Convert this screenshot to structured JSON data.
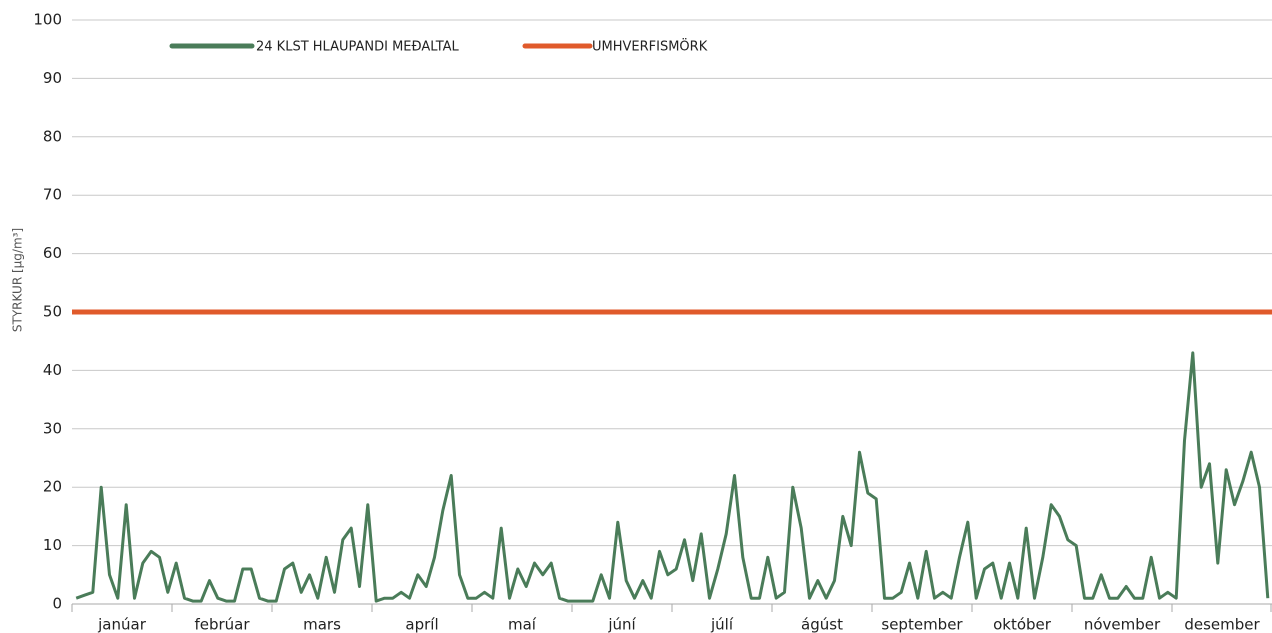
{
  "chart_data": {
    "type": "line",
    "y_label": "STYRKUR [µg/m³]",
    "x_labels": [
      "janúar",
      "febrúar",
      "mars",
      "apríl",
      "maí",
      "júní",
      "júlí",
      "ágúst",
      "september",
      "október",
      "nóvember",
      "desember"
    ],
    "series": [
      {
        "name": "24 KLST HLAUPANDI MEÐALTAL",
        "color": "#4a7c59",
        "values": [
          1,
          1.5,
          2,
          20,
          5,
          1,
          17,
          1,
          7,
          9,
          8,
          2,
          7,
          1,
          0.5,
          0.5,
          4,
          1,
          0.5,
          0.5,
          6,
          6,
          1,
          0.5,
          0.5,
          6,
          7,
          2,
          5,
          1,
          8,
          2,
          11,
          13,
          3,
          17,
          0.5,
          1,
          1,
          2,
          1,
          5,
          3,
          8,
          16,
          22,
          5,
          1,
          1,
          2,
          1,
          13,
          1,
          6,
          3,
          7,
          5,
          7,
          1,
          0.5,
          0.5,
          0.5,
          0.5,
          5,
          1,
          14,
          4,
          1,
          4,
          1,
          9,
          5,
          6,
          11,
          4,
          12,
          1,
          6,
          12,
          22,
          8,
          1,
          1,
          8,
          1,
          2,
          20,
          13,
          1,
          4,
          1,
          4,
          15,
          10,
          26,
          19,
          18,
          1,
          1,
          2,
          7,
          1,
          9,
          1,
          2,
          1,
          8,
          14,
          1,
          6,
          7,
          1,
          7,
          1,
          13,
          1,
          8,
          17,
          15,
          11,
          10,
          1,
          1,
          5,
          1,
          1,
          3,
          1,
          1,
          8,
          1,
          2,
          1,
          28,
          43,
          20,
          24,
          7,
          23,
          17,
          21,
          26,
          20,
          1
        ]
      }
    ],
    "reference_line": {
      "name": "UMHVERFISMÖRK",
      "color": "#e05a2b",
      "value": 50
    },
    "ylim": [
      0,
      100
    ],
    "yticks": [
      0,
      10,
      20,
      30,
      40,
      50,
      60,
      70,
      80,
      90,
      100
    ],
    "grid": true
  }
}
